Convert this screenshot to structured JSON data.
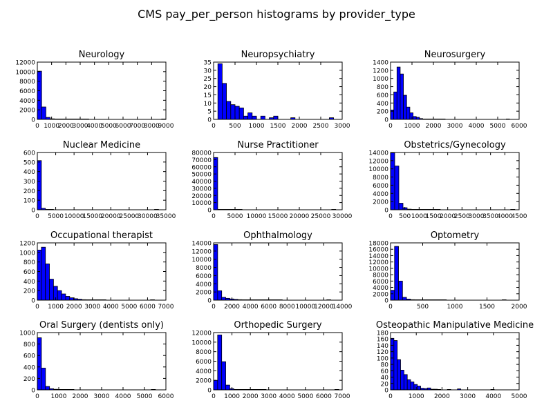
{
  "figure": {
    "title": "CMS pay_per_person histograms by provider_type"
  },
  "colors": {
    "bar": "#0000ff",
    "edge": "#000000"
  },
  "chart_data": [
    {
      "type": "bar",
      "title": "Neurology",
      "xlim": [
        0,
        9000
      ],
      "ylim": [
        0,
        12000
      ],
      "xticks": [
        0,
        1000,
        2000,
        3000,
        4000,
        5000,
        6000,
        7000,
        8000,
        9000
      ],
      "yticks": [
        0,
        2000,
        4000,
        6000,
        8000,
        10000,
        12000
      ],
      "bins": {
        "start": 0,
        "width": 300
      },
      "counts": [
        10100,
        2600,
        420,
        120,
        50,
        20,
        10,
        5,
        3,
        2,
        1,
        1,
        0,
        0,
        0,
        0,
        0,
        0,
        0,
        0,
        0,
        0,
        0,
        0,
        0,
        0,
        0,
        0,
        0,
        1
      ]
    },
    {
      "type": "bar",
      "title": "Neuropsychiatry",
      "xlim": [
        0,
        3000
      ],
      "ylim": [
        0,
        35
      ],
      "xticks": [
        0,
        500,
        1000,
        1500,
        2000,
        2500,
        3000
      ],
      "yticks": [
        0,
        5,
        10,
        15,
        20,
        25,
        30,
        35
      ],
      "bins": {
        "start": 0,
        "width": 100
      },
      "counts": [
        0,
        34,
        22,
        11,
        9,
        8,
        7,
        2,
        4,
        2,
        0,
        2,
        0,
        1,
        2,
        0,
        0,
        0,
        1,
        0,
        0,
        0,
        0,
        0,
        0,
        0,
        0,
        1,
        0,
        0
      ]
    },
    {
      "type": "bar",
      "title": "Neurosurgery",
      "xlim": [
        0,
        6000
      ],
      "ylim": [
        0,
        1400
      ],
      "xticks": [
        0,
        1000,
        2000,
        3000,
        4000,
        5000,
        6000
      ],
      "yticks": [
        0,
        200,
        400,
        600,
        800,
        1000,
        1200,
        1400
      ],
      "bins": {
        "start": 0,
        "width": 150
      },
      "counts": [
        230,
        670,
        1280,
        1110,
        590,
        300,
        160,
        70,
        50,
        20,
        10,
        5,
        4,
        3,
        2,
        1,
        1,
        0,
        0,
        0,
        0,
        0,
        0,
        0,
        0,
        0,
        0,
        0,
        0,
        0,
        0,
        0,
        0,
        0,
        0,
        0,
        1
      ]
    },
    {
      "type": "bar",
      "title": "Nuclear Medicine",
      "xlim": [
        0,
        35000
      ],
      "ylim": [
        0,
        600
      ],
      "xticks": [
        0,
        5000,
        10000,
        15000,
        20000,
        25000,
        30000,
        35000
      ],
      "yticks": [
        0,
        100,
        200,
        300,
        400,
        500,
        600
      ],
      "bins": {
        "start": 0,
        "width": 1100
      },
      "counts": [
        515,
        15,
        3,
        1,
        0,
        0,
        0,
        0,
        0,
        0,
        0,
        0,
        0,
        0,
        0,
        0,
        0,
        0,
        0,
        0,
        0,
        0,
        0,
        0,
        0,
        0,
        0,
        0,
        0,
        1
      ]
    },
    {
      "type": "bar",
      "title": "Nurse Practitioner",
      "xlim": [
        0,
        30000
      ],
      "ylim": [
        0,
        80000
      ],
      "xticks": [
        0,
        5000,
        10000,
        15000,
        20000,
        25000,
        30000
      ],
      "yticks": [
        0,
        10000,
        20000,
        30000,
        40000,
        50000,
        60000,
        70000,
        80000
      ],
      "bins": {
        "start": 0,
        "width": 950
      },
      "counts": [
        73000,
        300,
        40,
        10,
        5,
        2,
        1,
        0,
        0,
        0,
        0,
        0,
        0,
        0,
        0,
        0,
        0,
        0,
        0,
        0,
        0,
        0,
        0,
        0,
        0,
        0,
        0,
        0,
        0,
        1
      ]
    },
    {
      "type": "bar",
      "title": "Obstetrics/Gynecology",
      "xlim": [
        0,
        4500
      ],
      "ylim": [
        0,
        14000
      ],
      "xticks": [
        0,
        500,
        1000,
        1500,
        2000,
        2500,
        3000,
        3500,
        4000,
        4500
      ],
      "yticks": [
        0,
        2000,
        4000,
        6000,
        8000,
        10000,
        12000,
        14000
      ],
      "bins": {
        "start": 0,
        "width": 145
      },
      "counts": [
        13900,
        10700,
        1600,
        500,
        150,
        50,
        20,
        10,
        5,
        3,
        2,
        1,
        0,
        0,
        0,
        0,
        0,
        0,
        0,
        0,
        0,
        0,
        0,
        0,
        0,
        0,
        0,
        0,
        0,
        1
      ]
    },
    {
      "type": "bar",
      "title": "Occupational therapist",
      "xlim": [
        0,
        7000
      ],
      "ylim": [
        0,
        1200
      ],
      "xticks": [
        0,
        1000,
        2000,
        3000,
        4000,
        5000,
        6000,
        7000
      ],
      "yticks": [
        0,
        200,
        400,
        600,
        800,
        1000,
        1200
      ],
      "bins": {
        "start": 0,
        "width": 220
      },
      "counts": [
        1050,
        1110,
        760,
        440,
        290,
        200,
        130,
        80,
        50,
        30,
        20,
        10,
        5,
        3,
        2,
        1,
        1,
        0,
        0,
        0,
        0,
        0,
        0,
        0,
        0,
        0,
        0,
        0,
        1
      ]
    },
    {
      "type": "bar",
      "title": "Ophthalmology",
      "xlim": [
        0,
        14000
      ],
      "ylim": [
        0,
        14000
      ],
      "xticks": [
        0,
        2000,
        4000,
        6000,
        8000,
        10000,
        12000,
        14000
      ],
      "yticks": [
        0,
        2000,
        4000,
        6000,
        8000,
        10000,
        12000,
        14000
      ],
      "bins": {
        "start": 0,
        "width": 440
      },
      "counts": [
        13600,
        2300,
        700,
        450,
        300,
        200,
        120,
        80,
        50,
        30,
        20,
        10,
        5,
        3,
        2,
        1,
        1,
        0,
        0,
        0,
        0,
        0,
        0,
        0,
        0,
        0,
        0,
        0,
        1
      ]
    },
    {
      "type": "bar",
      "title": "Optometry",
      "xlim": [
        0,
        2000
      ],
      "ylim": [
        0,
        18000
      ],
      "xticks": [
        0,
        500,
        1000,
        1500,
        2000
      ],
      "yticks": [
        0,
        2000,
        4000,
        6000,
        8000,
        10000,
        12000,
        14000,
        16000,
        18000
      ],
      "bins": {
        "start": 0,
        "width": 62
      },
      "counts": [
        3100,
        16900,
        6000,
        900,
        350,
        150,
        60,
        30,
        15,
        8,
        4,
        2,
        1,
        1,
        0,
        0,
        0,
        0,
        0,
        0,
        0,
        0,
        0,
        0,
        0,
        0,
        0,
        0,
        1
      ]
    },
    {
      "type": "bar",
      "title": "Oral Surgery (dentists only)",
      "xlim": [
        0,
        6000
      ],
      "ylim": [
        0,
        1000
      ],
      "xticks": [
        0,
        1000,
        2000,
        3000,
        4000,
        5000,
        6000
      ],
      "yticks": [
        0,
        200,
        400,
        600,
        800,
        1000
      ],
      "bins": {
        "start": 0,
        "width": 190
      },
      "counts": [
        910,
        380,
        60,
        20,
        10,
        5,
        3,
        2,
        1,
        0,
        0,
        0,
        0,
        0,
        0,
        0,
        0,
        0,
        0,
        0,
        0,
        0,
        0,
        0,
        0,
        0,
        0,
        0,
        1
      ]
    },
    {
      "type": "bar",
      "title": "Orthopedic Surgery",
      "xlim": [
        0,
        7000
      ],
      "ylim": [
        0,
        12000
      ],
      "xticks": [
        0,
        1000,
        2000,
        3000,
        4000,
        5000,
        6000,
        7000
      ],
      "yticks": [
        0,
        2000,
        4000,
        6000,
        8000,
        10000,
        12000
      ],
      "bins": {
        "start": 0,
        "width": 220
      },
      "counts": [
        2000,
        11500,
        5900,
        1000,
        250,
        80,
        30,
        15,
        8,
        4,
        2,
        1,
        1,
        0,
        0,
        0,
        0,
        0,
        0,
        0,
        0,
        0,
        0,
        0,
        0,
        0,
        0,
        0,
        0,
        0,
        1
      ]
    },
    {
      "type": "bar",
      "title": "Osteopathic Manipulative Medicine",
      "xlim": [
        0,
        5000
      ],
      "ylim": [
        0,
        180
      ],
      "xticks": [
        0,
        1000,
        2000,
        3000,
        4000,
        5000
      ],
      "yticks": [
        0,
        20,
        40,
        60,
        80,
        100,
        120,
        140,
        160,
        180
      ],
      "bins": {
        "start": 0,
        "width": 130
      },
      "counts": [
        162,
        155,
        95,
        62,
        48,
        32,
        25,
        17,
        12,
        5,
        4,
        6,
        2,
        2,
        1,
        0,
        0,
        1,
        0,
        0,
        3,
        0,
        0,
        0,
        0,
        0,
        0,
        0,
        0,
        0,
        1
      ]
    }
  ]
}
